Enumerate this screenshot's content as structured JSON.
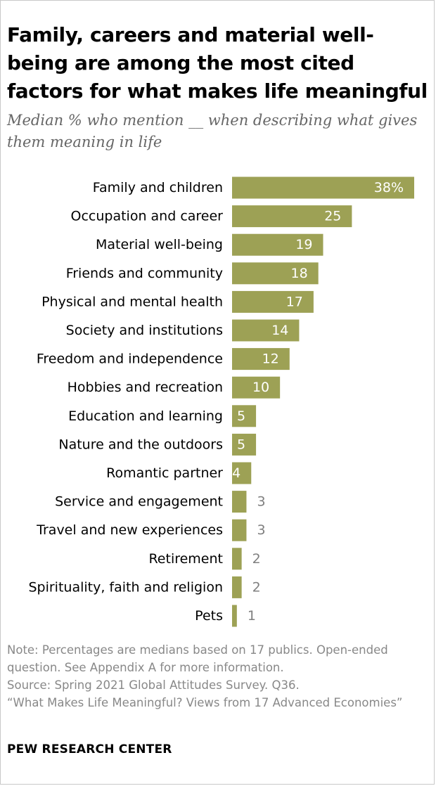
{
  "title": "Family, careers and material well-being are among the most cited factors for what makes life meaningful",
  "subtitle": "Median % who mention __ when describing what gives them meaning in life",
  "notes": [
    "Note: Percentages are medians based on 17 publics. Open-ended question. See Appendix A for more information.",
    "Source: Spring 2021 Global Attitudes Survey. Q36.",
    "“What Makes Life Meaningful? Views from 17 Advanced Economies”"
  ],
  "footer": "PEW RESEARCH CENTER",
  "colors": {
    "bar": "#9da155",
    "label_inside": "#ffffff",
    "label_outside": "#7f7f7f"
  },
  "chart_data": {
    "type": "bar",
    "orientation": "horizontal",
    "categories": [
      "Family and children",
      "Occupation and career",
      "Material well-being",
      "Friends and community",
      "Physical and mental health",
      "Society and institutions",
      "Freedom and independence",
      "Hobbies and recreation",
      "Education and learning",
      "Nature and the outdoors",
      "Romantic partner",
      "Service and engagement",
      "Travel and new experiences",
      "Retirement",
      "Spirituality, faith and religion",
      "Pets"
    ],
    "values": [
      38,
      25,
      19,
      18,
      17,
      14,
      12,
      10,
      5,
      5,
      4,
      3,
      3,
      2,
      2,
      1
    ],
    "value_labels": [
      "38%",
      "25",
      "19",
      "18",
      "17",
      "14",
      "12",
      "10",
      "5",
      "5",
      "4",
      "3",
      "3",
      "2",
      "2",
      "1"
    ],
    "xlim": [
      0,
      38
    ],
    "grid": false,
    "legend": "none"
  }
}
